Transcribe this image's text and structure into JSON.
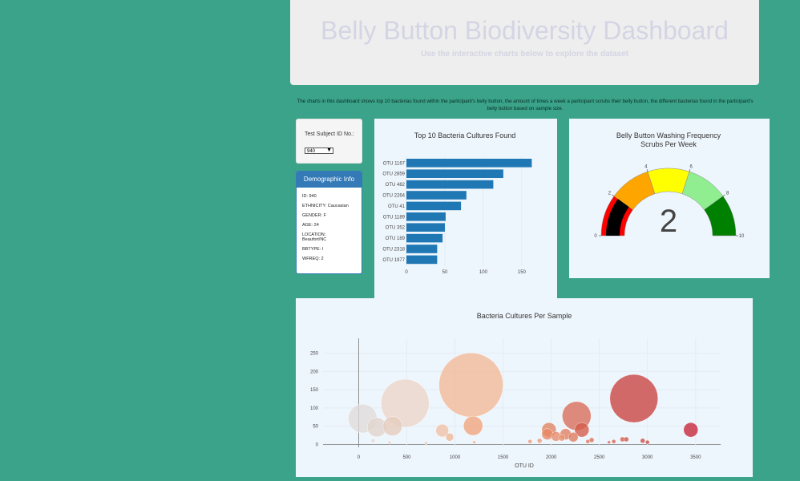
{
  "header": {
    "title": "Belly Button Biodiversity Dashboard",
    "subtitle": "Use the interactive charts below to explore the dataset"
  },
  "intro_text": "The charts in this dashboard shows top 10 bacterias found within the participant's belly button, the amount of times a week a participant scrubs their belly button, the different bacterias found in the participant's belly button based on sample size.",
  "selector": {
    "label": "Test Subject ID No.:",
    "value": "940"
  },
  "demographics": {
    "title": "Demographic Info",
    "lines": [
      "ID: 940",
      "ETHNICITY: Caucasian",
      "GENDER: F",
      "AGE: 24",
      "LOCATION: Beaufort/NC",
      "BBTYPE: I",
      "WFREQ: 2"
    ]
  },
  "colors": {
    "background": "#3aa38a",
    "bar": "#1f77b4",
    "panel_header": "#337ab7"
  },
  "chart_data": [
    {
      "type": "bar",
      "orientation": "horizontal",
      "title": "Top 10 Bacteria Cultures Found",
      "categories": [
        "OTU 1167",
        "OTU 2859",
        "OTU 482",
        "OTU 2264",
        "OTU 41",
        "OTU 1189",
        "OTU 352",
        "OTU 189",
        "OTU 2318",
        "OTU 1977"
      ],
      "values": [
        163,
        126,
        113,
        78,
        71,
        51,
        50,
        47,
        40,
        40
      ],
      "xticks": [
        0,
        50,
        100,
        150
      ],
      "xlim": [
        0,
        172
      ]
    },
    {
      "type": "gauge",
      "title": "Belly Button Washing Frequency",
      "subtitle": "Scrubs Per Week",
      "value": 2,
      "range": [
        0,
        10
      ],
      "ticks": [
        0,
        2,
        4,
        6,
        8,
        10
      ],
      "bands": [
        {
          "from": 0,
          "to": 2,
          "color": "#ff0000"
        },
        {
          "from": 2,
          "to": 4,
          "color": "#ffa500"
        },
        {
          "from": 4,
          "to": 6,
          "color": "#ffff00"
        },
        {
          "from": 6,
          "to": 8,
          "color": "#90ee90"
        },
        {
          "from": 8,
          "to": 10,
          "color": "#008000"
        }
      ],
      "bar_color": "#000000"
    },
    {
      "type": "scatter",
      "title": "Bacteria Cultures Per Sample",
      "xlabel": "OTU ID",
      "xticks": [
        0,
        500,
        1000,
        1500,
        2000,
        2500,
        3000,
        3500
      ],
      "yticks": [
        0,
        50,
        100,
        150,
        200,
        250
      ],
      "xlim": [
        -370,
        3760
      ],
      "ylim": [
        -8,
        280
      ],
      "points": [
        {
          "x": 1167,
          "y": 163,
          "color": "#f3b996"
        },
        {
          "x": 482,
          "y": 113,
          "color": "#ecd5c8"
        },
        {
          "x": 2859,
          "y": 126,
          "color": "#c9413f"
        },
        {
          "x": 2264,
          "y": 78,
          "color": "#d86b57"
        },
        {
          "x": 41,
          "y": 71,
          "color": "#e0dbd9"
        },
        {
          "x": 189,
          "y": 47,
          "color": "#e2d4cc"
        },
        {
          "x": 352,
          "y": 50,
          "color": "#e6ccbd"
        },
        {
          "x": 1189,
          "y": 51,
          "color": "#f1a47a"
        },
        {
          "x": 3450,
          "y": 40,
          "color": "#c62436"
        },
        {
          "x": 2318,
          "y": 40,
          "color": "#d55b48"
        },
        {
          "x": 1977,
          "y": 40,
          "color": "#e0835f"
        },
        {
          "x": 868,
          "y": 38,
          "color": "#efc0a5"
        },
        {
          "x": 1960,
          "y": 28,
          "color": "#e88763"
        },
        {
          "x": 2150,
          "y": 28,
          "color": "#e47f5f"
        },
        {
          "x": 2050,
          "y": 22,
          "color": "#e88a68"
        },
        {
          "x": 2230,
          "y": 20,
          "color": "#e07a5c"
        },
        {
          "x": 945,
          "y": 20,
          "color": "#f0b796"
        },
        {
          "x": 2110,
          "y": 18,
          "color": "#e5906d"
        },
        {
          "x": 1880,
          "y": 10,
          "color": "#ee9a78"
        },
        {
          "x": 2420,
          "y": 12,
          "color": "#dd6e57"
        },
        {
          "x": 2740,
          "y": 14,
          "color": "#d35a4b"
        },
        {
          "x": 2780,
          "y": 14,
          "color": "#d15548"
        },
        {
          "x": 2950,
          "y": 10,
          "color": "#cd4d44"
        },
        {
          "x": 2650,
          "y": 8,
          "color": "#d6634f"
        },
        {
          "x": 2380,
          "y": 8,
          "color": "#df7458"
        },
        {
          "x": 1780,
          "y": 8,
          "color": "#ec9877"
        },
        {
          "x": 3000,
          "y": 6,
          "color": "#cb4a42"
        },
        {
          "x": 150,
          "y": 10,
          "color": "#e2d7d2"
        },
        {
          "x": 320,
          "y": 5,
          "color": "#e8cdbf"
        },
        {
          "x": 1200,
          "y": 6,
          "color": "#f3b28e"
        },
        {
          "x": 700,
          "y": 4,
          "color": "#eec8b3"
        },
        {
          "x": 2600,
          "y": 6,
          "color": "#d86b55"
        }
      ],
      "sizes_marker": [
        80,
        60,
        60,
        36,
        36,
        24,
        24,
        24,
        18,
        18,
        18,
        16,
        14,
        14,
        12,
        12,
        10,
        8,
        6,
        6,
        6,
        6,
        6,
        5,
        5,
        5,
        5,
        5,
        4,
        4,
        4,
        4
      ]
    }
  ]
}
